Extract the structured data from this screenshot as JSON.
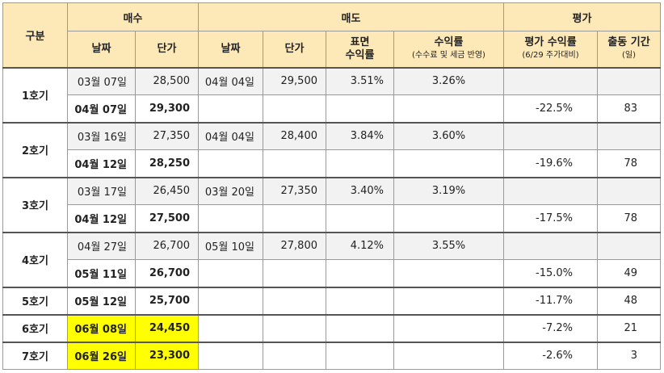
{
  "header": {
    "category": "구분",
    "buy": "매수",
    "sell": "매도",
    "evaluation": "평가",
    "buy_date": "날짜",
    "buy_price": "단가",
    "sell_date": "날짜",
    "sell_price": "단가",
    "surface_return_line1": "표면",
    "surface_return_line2": "수익률",
    "return_line1": "수익률",
    "return_line2": "(수수료 및 세금 반영)",
    "eval_return_line1": "평가 수익률",
    "eval_return_line2": "(6/29 주가대비)",
    "period_line1": "출동 기간",
    "period_line2": "(일)"
  },
  "rows": [
    {
      "label": "1호기",
      "first": {
        "buy_date": "03월 07일",
        "buy_price": "28,500",
        "sell_date": "04월 04일",
        "sell_price": "29,500",
        "surface_return": "3.51%",
        "return": "3.26%"
      },
      "second": {
        "buy_date": "04월 07일",
        "buy_price": "29,300",
        "eval_return": "-22.5%",
        "days": "83"
      }
    },
    {
      "label": "2호기",
      "first": {
        "buy_date": "03월 16일",
        "buy_price": "27,350",
        "sell_date": "04월 04일",
        "sell_price": "28,400",
        "surface_return": "3.84%",
        "return": "3.60%"
      },
      "second": {
        "buy_date": "04월 12일",
        "buy_price": "28,250",
        "eval_return": "-19.6%",
        "days": "78"
      }
    },
    {
      "label": "3호기",
      "first": {
        "buy_date": "03월 17일",
        "buy_price": "26,450",
        "sell_date": "03월 20일",
        "sell_price": "27,350",
        "surface_return": "3.40%",
        "return": "3.19%"
      },
      "second": {
        "buy_date": "04월 12일",
        "buy_price": "27,500",
        "eval_return": "-17.5%",
        "days": "78"
      }
    },
    {
      "label": "4호기",
      "first": {
        "buy_date": "04월 27일",
        "buy_price": "26,700",
        "sell_date": "05월 10일",
        "sell_price": "27,800",
        "surface_return": "4.12%",
        "return": "3.55%"
      },
      "second": {
        "buy_date": "05월 11일",
        "buy_price": "26,700",
        "eval_return": "-15.0%",
        "days": "49"
      }
    }
  ],
  "single_rows": [
    {
      "label": "5호기",
      "buy_date": "05월 12일",
      "buy_price": "25,700",
      "eval_return": "-11.7%",
      "days": "48",
      "highlight": false
    },
    {
      "label": "6호기",
      "buy_date": "06월 08일",
      "buy_price": "24,450",
      "eval_return": "-7.2%",
      "days": "21",
      "highlight": true
    },
    {
      "label": "7호기",
      "buy_date": "06월 26일",
      "buy_price": "23,300",
      "eval_return": "-2.6%",
      "days": "3",
      "highlight": true
    }
  ],
  "colors": {
    "header_bg": "#fde9b8",
    "highlight": "#ffff00",
    "shaded_row": "#f2f2f2"
  }
}
